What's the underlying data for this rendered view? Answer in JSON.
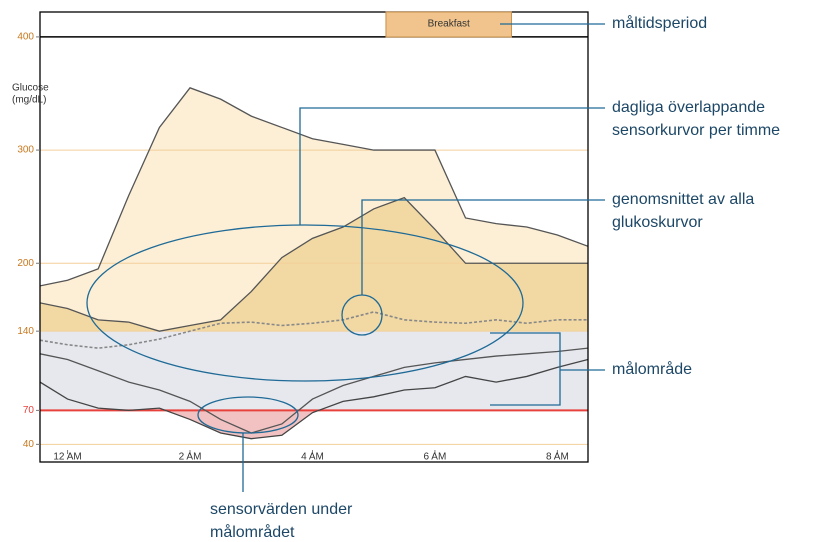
{
  "chart_data": {
    "type": "line",
    "y_label": [
      "Glucose",
      "(mg/dL)"
    ],
    "xlim": [
      -0.45,
      8.5
    ],
    "ylim": [
      35,
      422
    ],
    "xticks": [
      {
        "value": 0,
        "label": "12 AM"
      },
      {
        "value": 2,
        "label": "2 AM"
      },
      {
        "value": 4,
        "label": "4 AM"
      },
      {
        "value": 6,
        "label": "6 AM"
      },
      {
        "value": 8,
        "label": "8 AM"
      }
    ],
    "yticks": [
      40,
      70,
      140,
      200,
      300,
      400
    ],
    "grid": true,
    "grid_color": "#f3cf9a",
    "tick_color": "#c8781e",
    "target_range": [
      70,
      140
    ],
    "target_color": "#e6e8ee",
    "low_color": "#e8413c",
    "meal_period": {
      "label": "Breakfast",
      "start": 5.2,
      "end": 7.25,
      "color": "#f0c48c"
    },
    "x": [
      -0.45,
      0,
      0.5,
      1,
      1.5,
      2,
      2.5,
      3,
      3.5,
      4,
      4.5,
      5,
      5.5,
      6,
      6.5,
      7,
      7.5,
      8,
      8.5
    ],
    "series": [
      {
        "color": "#555555",
        "fill": "#fcefd6",
        "values": [
          180,
          185,
          195,
          260,
          320,
          355,
          345,
          330,
          320,
          310,
          305,
          300,
          300,
          300,
          240,
          235,
          232,
          225,
          215
        ]
      },
      {
        "color": "#555555",
        "fill": "#f2d9a4",
        "values": [
          165,
          160,
          150,
          148,
          140,
          145,
          150,
          175,
          205,
          222,
          232,
          248,
          258,
          230,
          200,
          200,
          200,
          200,
          200
        ]
      },
      {
        "color": "#888888",
        "dashed": true,
        "values": [
          132,
          128,
          125,
          128,
          133,
          140,
          147,
          148,
          145,
          147,
          150,
          157,
          150,
          148,
          147,
          150,
          147,
          150,
          150
        ]
      },
      {
        "color": "#555555",
        "values": [
          120,
          115,
          105,
          95,
          88,
          78,
          62,
          50,
          58,
          80,
          92,
          100,
          108,
          112,
          115,
          118,
          120,
          122,
          125
        ]
      },
      {
        "color": "#444444",
        "values": [
          95,
          80,
          72,
          70,
          72,
          62,
          50,
          45,
          48,
          68,
          78,
          82,
          88,
          90,
          100,
          95,
          100,
          108,
          115
        ]
      }
    ],
    "annotations": [
      {
        "text": [
          "måltidsperiod"
        ]
      },
      {
        "text": [
          "dagliga överlappande",
          "sensorkurvor per timme"
        ]
      },
      {
        "text": [
          "genomsnittet av alla",
          "glukoskurvor"
        ]
      },
      {
        "text": [
          "målområde"
        ]
      },
      {
        "text": [
          "sensorvärden under",
          "målområdet"
        ]
      }
    ]
  }
}
